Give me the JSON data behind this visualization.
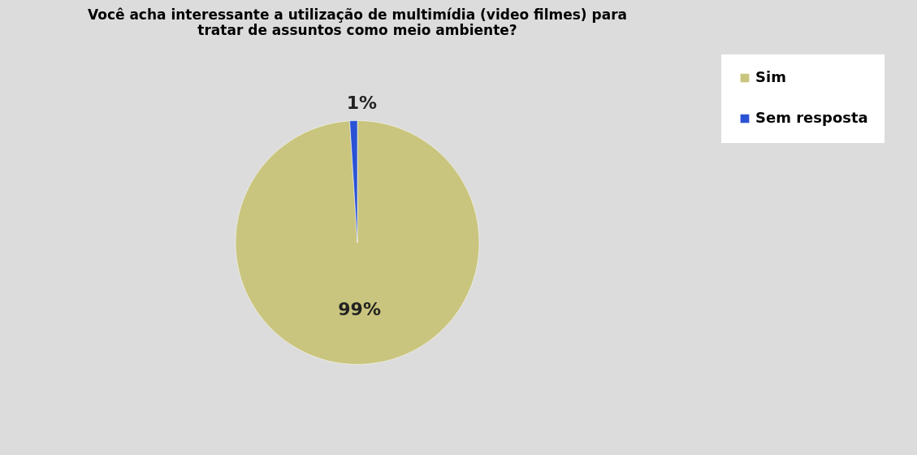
{
  "chart_data": {
    "type": "pie",
    "title": "Você acha interessante a utilização de multimídia (video filmes) para tratar de assuntos como meio ambiente?",
    "categories": [
      "Sim",
      "Sem resposta"
    ],
    "values": [
      99,
      1
    ],
    "value_labels": [
      "99%",
      "1%"
    ],
    "colors": [
      "#c9c57e",
      "#2a52d4"
    ],
    "legend": "right"
  }
}
